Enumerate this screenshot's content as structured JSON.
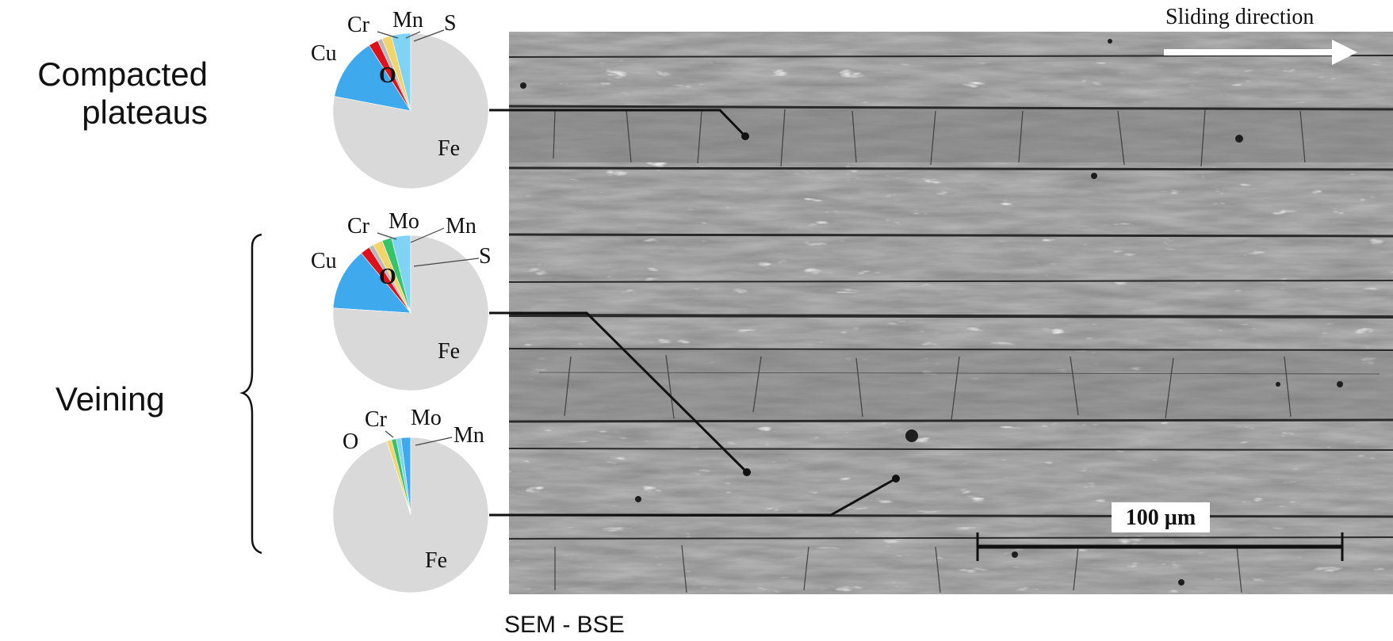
{
  "labels": {
    "compacted": "Compacted\nplateaus",
    "veining": "Veining",
    "caption": "SEM - BSE"
  },
  "micrograph": {
    "sliding_direction": "Sliding direction",
    "scale_bar": "100 µm"
  },
  "pie_charts": [
    {
      "name": "compacted-plateau-composition",
      "elements": [
        "Cr",
        "Mn",
        "S",
        "Cu",
        "O",
        "Fe"
      ],
      "fractions": [
        0.04,
        0.02,
        0.01,
        0.02,
        0.13,
        0.78
      ],
      "colors": [
        "#7fd4f5",
        "#f2d46a",
        "#b8b8b8",
        "#e0101a",
        "#3fa9ee",
        "#d9d9d9"
      ]
    },
    {
      "name": "veining-composition-1",
      "elements": [
        "Cr",
        "Mo",
        "Mn",
        "S",
        "Cu",
        "O",
        "Fe"
      ],
      "fractions": [
        0.04,
        0.02,
        0.02,
        0.01,
        0.02,
        0.13,
        0.76
      ],
      "colors": [
        "#7fd4f5",
        "#35c46a",
        "#f2d46a",
        "#b8b8b8",
        "#e0101a",
        "#3fa9ee",
        "#d9d9d9"
      ]
    },
    {
      "name": "veining-composition-2",
      "elements": [
        "O",
        "Cr",
        "Mo",
        "Mn",
        "Fe"
      ],
      "fractions": [
        0.02,
        0.01,
        0.01,
        0.01,
        0.95
      ],
      "colors": [
        "#3fa9ee",
        "#7fd4f5",
        "#35c46a",
        "#f2d46a",
        "#d9d9d9"
      ]
    }
  ]
}
